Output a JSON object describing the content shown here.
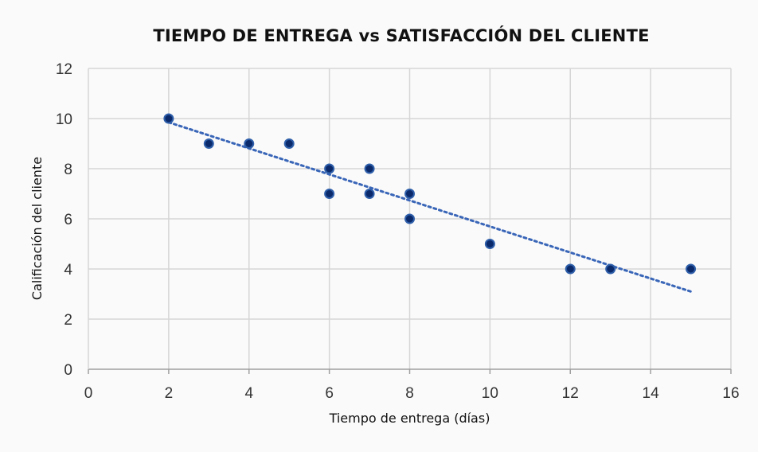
{
  "chart_data": {
    "type": "scatter",
    "title": "TIEMPO DE ENTREGA vs SATISFACCIÓN DEL CLIENTE",
    "xlabel": "Tiempo de entrega (días)",
    "ylabel": "Calificación del cliente",
    "xlim": [
      0,
      16
    ],
    "ylim": [
      0,
      12
    ],
    "x_ticks": [
      "0",
      "2",
      "4",
      "6",
      "8",
      "10",
      "12",
      "14",
      "16"
    ],
    "y_ticks": [
      "0",
      "2",
      "4",
      "6",
      "8",
      "10",
      "12"
    ],
    "grid": true,
    "legend": "none",
    "series": [
      {
        "points": [
          {
            "x": 2,
            "y": 10
          },
          {
            "x": 3,
            "y": 9
          },
          {
            "x": 4,
            "y": 9
          },
          {
            "x": 5,
            "y": 9
          },
          {
            "x": 6,
            "y": 8
          },
          {
            "x": 6,
            "y": 7
          },
          {
            "x": 7,
            "y": 8
          },
          {
            "x": 7,
            "y": 7
          },
          {
            "x": 8,
            "y": 7
          },
          {
            "x": 8,
            "y": 6
          },
          {
            "x": 10,
            "y": 5
          },
          {
            "x": 12,
            "y": 4
          },
          {
            "x": 13,
            "y": 4
          },
          {
            "x": 15,
            "y": 4
          }
        ],
        "marker_fill": "#0b2a6b",
        "marker_edge": "#2f5faa"
      }
    ],
    "trendline": {
      "style": "dotted",
      "color": "#3a66b8",
      "x_start": 2,
      "y_start": 9.85,
      "x_end": 15,
      "y_end": 3.1
    },
    "colors": {
      "grid": "#d6d6d6",
      "axis": "#a0a0a0",
      "background": "#fafafa"
    }
  }
}
